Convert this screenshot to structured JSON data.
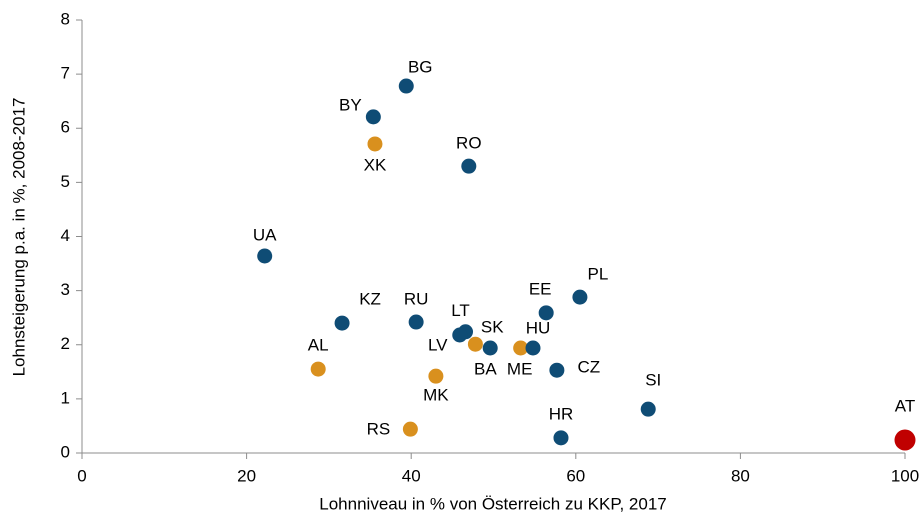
{
  "chart_data": {
    "type": "scatter",
    "xlabel": "Lohnniveau in % von Österreich zu KKP, 2017",
    "ylabel": "Lohnsteigerung p.a. in %,  2008-2017",
    "xlim": [
      0,
      100
    ],
    "xticks": [
      0,
      20,
      40,
      60,
      80,
      100
    ],
    "ylim": [
      0,
      8
    ],
    "yticks": [
      0,
      1,
      2,
      3,
      4,
      5,
      6,
      7,
      8
    ],
    "labels": [
      "BG",
      "BY",
      "XK",
      "RO",
      "UA",
      "PL",
      "EE",
      "KZ",
      "RU",
      "LT",
      "LV",
      "SK",
      "BA",
      "ME",
      "HU",
      "CZ",
      "AL",
      "MK",
      "SI",
      "RS",
      "HR",
      "AT"
    ],
    "x": [
      39.4,
      35.4,
      35.6,
      47.0,
      22.2,
      60.5,
      56.4,
      31.6,
      40.6,
      46.6,
      45.9,
      49.6,
      47.8,
      53.3,
      54.8,
      57.7,
      28.7,
      43.0,
      68.8,
      39.9,
      58.2,
      100
    ],
    "y": [
      6.78,
      6.21,
      5.71,
      5.3,
      3.64,
      2.88,
      2.59,
      2.4,
      2.42,
      2.24,
      2.18,
      1.94,
      2.01,
      1.94,
      1.94,
      1.53,
      1.55,
      1.42,
      0.81,
      0.44,
      0.28,
      0.24
    ],
    "colors": [
      "#0f4c75",
      "#0f4c75",
      "#d9901e",
      "#0f4c75",
      "#0f4c75",
      "#0f4c75",
      "#0f4c75",
      "#0f4c75",
      "#0f4c75",
      "#0f4c75",
      "#0f4c75",
      "#0f4c75",
      "#d9901e",
      "#d9901e",
      "#0f4c75",
      "#0f4c75",
      "#d9901e",
      "#d9901e",
      "#0f4c75",
      "#d9901e",
      "#0f4c75",
      "#c00000"
    ],
    "highlight": "AT"
  }
}
